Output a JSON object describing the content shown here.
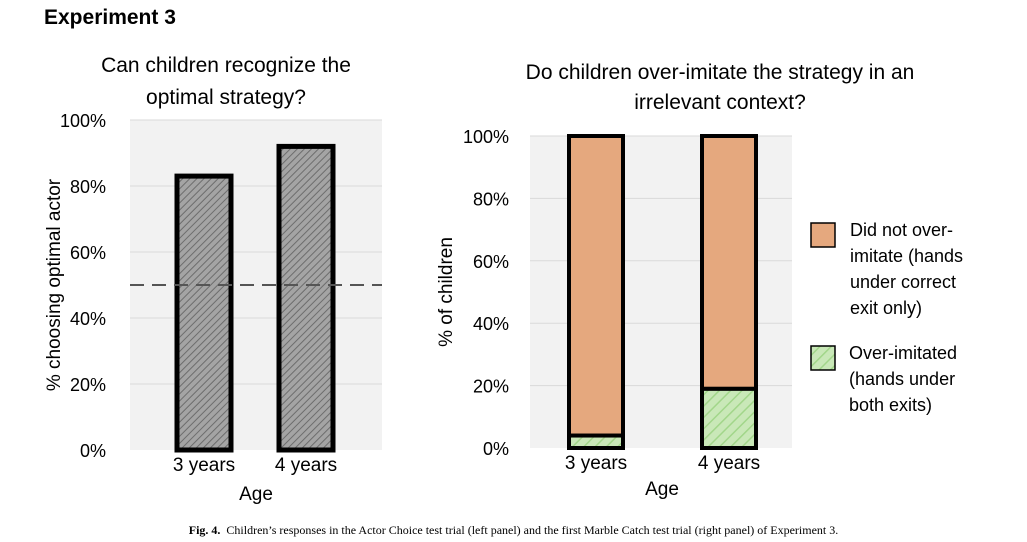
{
  "heading": "Experiment 3",
  "caption": {
    "label": "Fig. 4.",
    "text": "Children’s responses in the Actor Choice test trial (left panel) and the first Marble Catch test trial (right panel) of Experiment 3."
  },
  "colors": {
    "left_bar_fill": "#9a9a9a",
    "orange": "#e5a87e",
    "green": "#b9e0a5",
    "plot_bg": "#f2f2f2",
    "gridline": "#d9d9d9"
  },
  "chart_data": [
    {
      "type": "bar",
      "title_lines": [
        "Can children recognize the",
        "optimal strategy?"
      ],
      "xlabel": "Age",
      "ylabel": "% choosing optimal actor",
      "categories": [
        "3 years",
        "4 years"
      ],
      "values": [
        83,
        92
      ],
      "ylim": [
        0,
        100
      ],
      "yticks": [
        "0%",
        "20%",
        "40%",
        "60%",
        "80%",
        "100%"
      ],
      "reference_line": 50,
      "bar_pattern": "diagonal-hatch"
    },
    {
      "type": "bar",
      "stacked": true,
      "title_lines": [
        "Do children over-imitate the strategy in an",
        "irrelevant context?"
      ],
      "xlabel": "Age",
      "ylabel": "% of children",
      "categories": [
        "3 years",
        "4 years"
      ],
      "ylim": [
        0,
        100
      ],
      "yticks": [
        "0%",
        "20%",
        "40%",
        "60%",
        "80%",
        "100%"
      ],
      "legend_position": "right",
      "series": [
        {
          "name_lines": [
            "Over-imitated",
            "(hands under",
            "both exits)"
          ],
          "values": [
            4,
            19
          ],
          "color": "#b9e0a5",
          "pattern": "diagonal-hatch"
        },
        {
          "name_lines": [
            "Did not over-",
            "imitate (hands",
            "under correct",
            "exit only)"
          ],
          "values": [
            96,
            81
          ],
          "color": "#e5a87e",
          "pattern": "solid"
        }
      ]
    }
  ]
}
